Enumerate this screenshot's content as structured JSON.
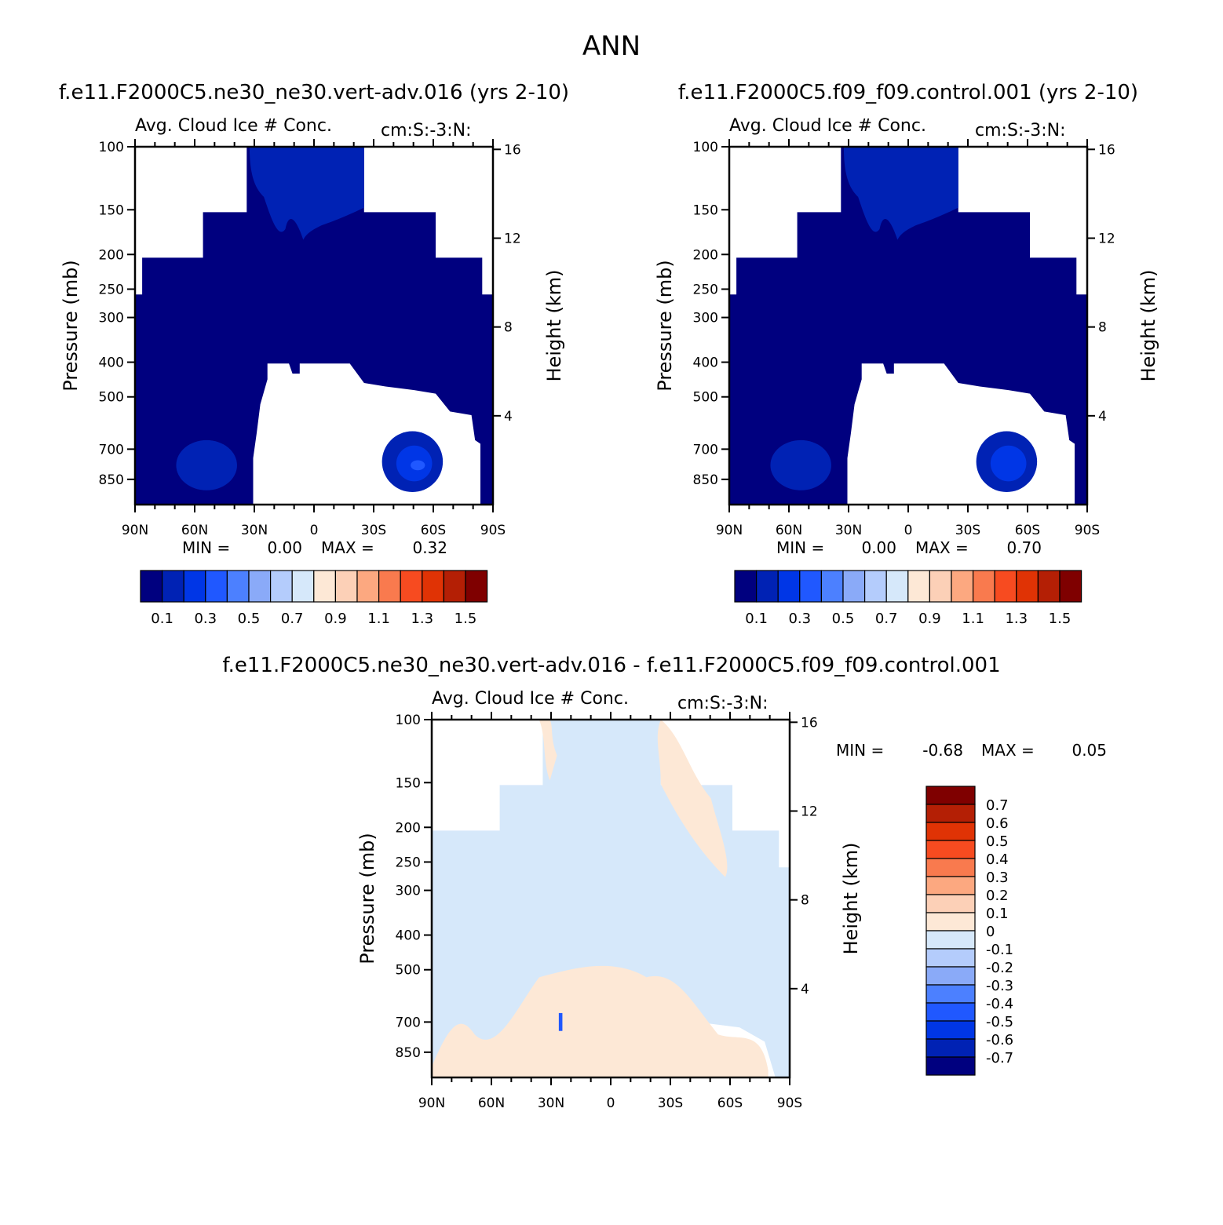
{
  "figure": {
    "suptitle": "ANN"
  },
  "panel_titles": {
    "left": "f.e11.F2000C5.ne30_ne30.vert-adv.016 (yrs 2-10)",
    "right": "f.e11.F2000C5.f09_f09.control.001 (yrs 2-10)",
    "diff": "f.e11.F2000C5.ne30_ne30.vert-adv.016 - f.e11.F2000C5.f09_f09.control.001"
  },
  "colors": {
    "scale": [
      "#00007f",
      "#0022b4",
      "#0036e6",
      "#2058ff",
      "#4c80ff",
      "#8aaaf8",
      "#b4ccfc",
      "#d6e8fa",
      "#fde8d6",
      "#fcd0b7",
      "#fca880",
      "#f97a4e",
      "#f74b20",
      "#e03305",
      "#b41f05",
      "#7f0000"
    ],
    "background": "#ffffff"
  },
  "chart_data": [
    {
      "type": "contour",
      "panel": "left",
      "variable": "Avg. Cloud Ice # Conc.",
      "units": "cm:S:-3:N:",
      "ylabel": "Pressure (mb)",
      "ylabel_right": "Height (km)",
      "x_ticks": [
        "90N",
        "60N",
        "30N",
        "0",
        "30S",
        "60S",
        "90S"
      ],
      "y_ticks": [
        "100",
        "150",
        "200",
        "250",
        "300",
        "400",
        "500",
        "700",
        "850"
      ],
      "y_right_ticks": [
        "16",
        "12",
        "8",
        "4"
      ],
      "min_label": "MIN =",
      "min_value": "0.00",
      "max_label": "MAX =",
      "max_value": "0.32",
      "colorbar_labels": [
        "0.1",
        "0.3",
        "0.5",
        "0.7",
        "0.9",
        "1.1",
        "1.3",
        "1.5"
      ]
    },
    {
      "type": "contour",
      "panel": "right",
      "variable": "Avg. Cloud Ice # Conc.",
      "units": "cm:S:-3:N:",
      "ylabel": "Pressure (mb)",
      "ylabel_right": "Height (km)",
      "x_ticks": [
        "90N",
        "60N",
        "30N",
        "0",
        "30S",
        "60S",
        "90S"
      ],
      "y_ticks": [
        "100",
        "150",
        "200",
        "250",
        "300",
        "400",
        "500",
        "700",
        "850"
      ],
      "y_right_ticks": [
        "16",
        "12",
        "8",
        "4"
      ],
      "min_label": "MIN =",
      "min_value": "0.00",
      "max_label": "MAX =",
      "max_value": "0.70",
      "colorbar_labels": [
        "0.1",
        "0.3",
        "0.5",
        "0.7",
        "0.9",
        "1.1",
        "1.3",
        "1.5"
      ]
    },
    {
      "type": "contour",
      "panel": "diff",
      "variable": "Avg. Cloud Ice # Conc.",
      "units": "cm:S:-3:N:",
      "ylabel": "Pressure (mb)",
      "ylabel_right": "Height (km)",
      "x_ticks": [
        "90N",
        "60N",
        "30N",
        "0",
        "30S",
        "60S",
        "90S"
      ],
      "y_ticks": [
        "100",
        "150",
        "200",
        "250",
        "300",
        "400",
        "500",
        "700",
        "850"
      ],
      "y_right_ticks": [
        "16",
        "12",
        "8",
        "4"
      ],
      "min_label": "MIN =",
      "min_value": "-0.68",
      "max_label": "MAX =",
      "max_value": "0.05",
      "colorbar_labels": [
        "0.7",
        "0.6",
        "0.5",
        "0.4",
        "0.3",
        "0.2",
        "0.1",
        "0",
        "-0.1",
        "-0.2",
        "-0.3",
        "-0.4",
        "-0.5",
        "-0.6",
        "-0.7"
      ]
    }
  ]
}
